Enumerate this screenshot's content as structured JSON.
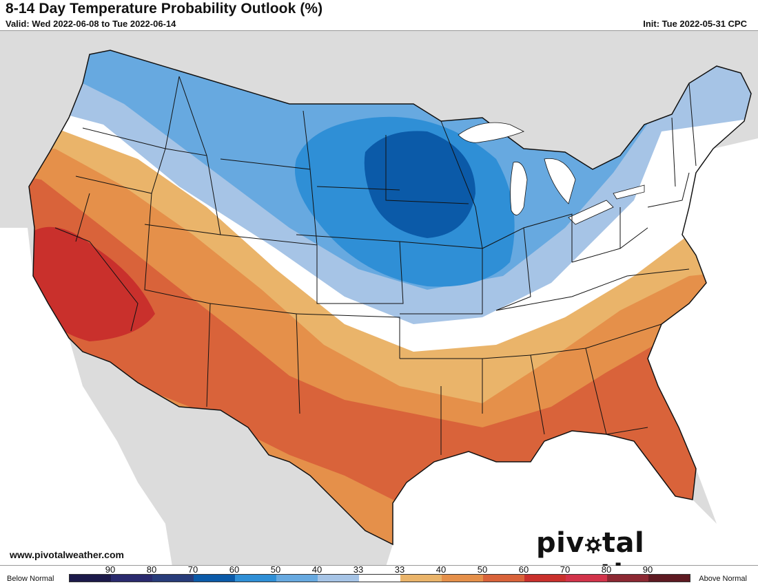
{
  "header": {
    "title": "8-14 Day Temperature Probability Outlook (%)",
    "valid": "Valid: Wed 2022-06-08 to Tue 2022-06-14",
    "init": "Init: Tue 2022-05-31 CPC"
  },
  "footer": {
    "website": "www.pivotalweather.com",
    "brand_before": "piv",
    "brand_after": "tal weather"
  },
  "legend": {
    "below_label": "Below Normal",
    "above_label": "Above Normal",
    "ticks": [
      "90",
      "80",
      "70",
      "60",
      "50",
      "40",
      "33",
      "33",
      "40",
      "50",
      "60",
      "70",
      "80",
      "90"
    ],
    "colors": [
      "#1c1a4a",
      "#2a2a6e",
      "#283c7a",
      "#0b5aa8",
      "#2f8fd6",
      "#67a9e0",
      "#a6c4e6",
      "#ffffff",
      "#eab46a",
      "#e5904a",
      "#d9633a",
      "#c9302c",
      "#d2334a",
      "#8c2832",
      "#5e1a22"
    ]
  },
  "colors": {
    "land_outside": "#dcdcdc",
    "water": "#ffffff",
    "below_33": "#a6c4e6",
    "below_40": "#67a9e0",
    "below_50": "#2f8fd6",
    "below_60": "#0b5aa8",
    "above_33": "#eab46a",
    "above_40": "#e5904a",
    "above_50": "#d9633a",
    "above_60": "#c9302c"
  }
}
